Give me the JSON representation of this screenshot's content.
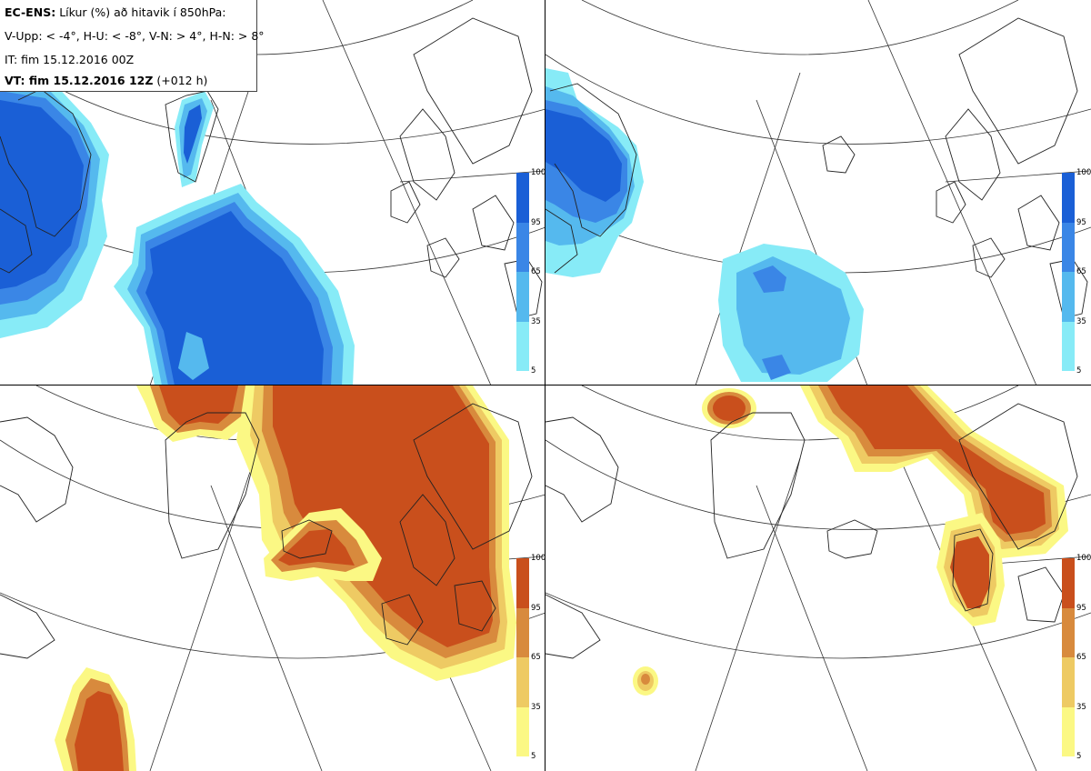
{
  "header": {
    "model": "EC-ENS:",
    "title": "Líkur (%) að hitavik í 850hPa:",
    "thresholds": "V-Upp: < -4°, H-U: < -8°, V-N: > 4°, H-N: > 8°",
    "init_time": "IT: fim 15.12.2016 00Z",
    "valid_prefix": "VT: fim 15.12.2016 12Z",
    "lead": "(+012 h)"
  },
  "colorbars": {
    "ticks": [
      "100",
      "95",
      "65",
      "35",
      "5"
    ],
    "cold_colors": [
      "#1a5fd6",
      "#3a86e6",
      "#55b9ee",
      "#87ebf7"
    ],
    "warm_colors": [
      "#c94f1c",
      "#d88a3d",
      "#eeca63",
      "#fbf884"
    ]
  },
  "panels": [
    {
      "id": "V-Upp",
      "kind": "cold"
    },
    {
      "id": "H-U",
      "kind": "cold"
    },
    {
      "id": "V-N",
      "kind": "warm"
    },
    {
      "id": "H-N",
      "kind": "warm"
    }
  ]
}
